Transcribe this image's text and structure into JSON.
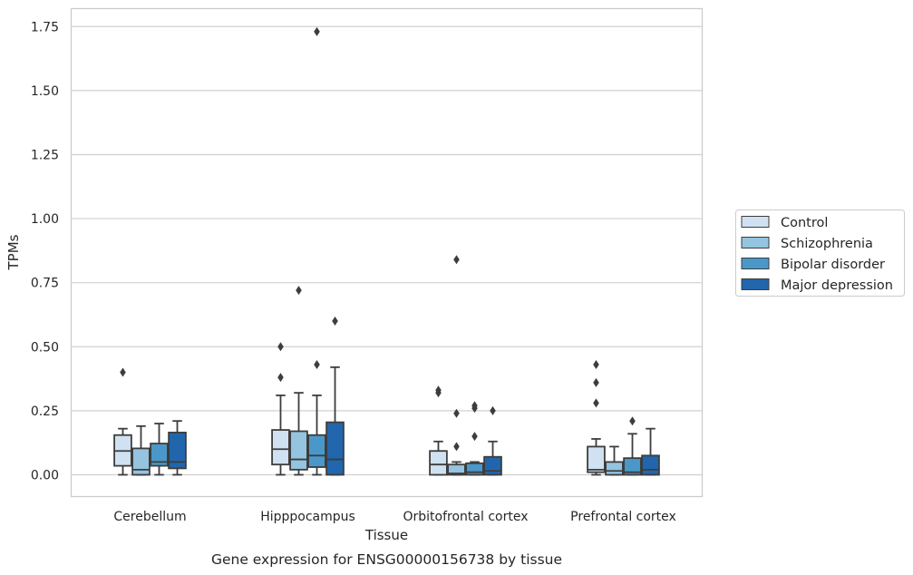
{
  "chart_data": {
    "type": "box",
    "title": "",
    "xlabel": "Tissue",
    "ylabel": "TPMs",
    "caption": "Gene expression for ENSG00000156738 by tissue",
    "ylim": [
      -0.085,
      1.82
    ],
    "yticks": [
      0.0,
      0.25,
      0.5,
      0.75,
      1.0,
      1.25,
      1.5,
      1.75
    ],
    "ytick_labels": [
      "0.00",
      "0.25",
      "0.50",
      "0.75",
      "1.00",
      "1.25",
      "1.50",
      "1.75"
    ],
    "categories": [
      "Cerebellum",
      "Hipppocampus",
      "Orbitofrontal cortex",
      "Prefrontal cortex"
    ],
    "grid": "horizontal",
    "legend_position": "right-outside",
    "series": [
      {
        "name": "Control",
        "color": "#d0e1f2",
        "boxes": [
          {
            "whislo": 0.0,
            "q1": 0.035,
            "med": 0.093,
            "q3": 0.155,
            "whishi": 0.18,
            "fliers": [
              0.4
            ]
          },
          {
            "whislo": 0.0,
            "q1": 0.04,
            "med": 0.1,
            "q3": 0.175,
            "whishi": 0.31,
            "fliers": [
              0.38,
              0.5
            ]
          },
          {
            "whislo": 0.0,
            "q1": 0.0,
            "med": 0.04,
            "q3": 0.093,
            "whishi": 0.13,
            "fliers": [
              0.32,
              0.33
            ]
          },
          {
            "whislo": 0.0,
            "q1": 0.01,
            "med": 0.02,
            "q3": 0.11,
            "whishi": 0.14,
            "fliers": [
              0.28,
              0.36,
              0.43
            ]
          }
        ]
      },
      {
        "name": "Schizophrenia",
        "color": "#94c4df",
        "boxes": [
          {
            "whislo": 0.0,
            "q1": 0.0,
            "med": 0.02,
            "q3": 0.103,
            "whishi": 0.19,
            "fliers": []
          },
          {
            "whislo": 0.0,
            "q1": 0.02,
            "med": 0.06,
            "q3": 0.17,
            "whishi": 0.32,
            "fliers": [
              0.72
            ]
          },
          {
            "whislo": 0.0,
            "q1": 0.0,
            "med": 0.005,
            "q3": 0.04,
            "whishi": 0.05,
            "fliers": [
              0.11,
              0.24,
              0.84
            ]
          },
          {
            "whislo": 0.0,
            "q1": 0.0,
            "med": 0.015,
            "q3": 0.05,
            "whishi": 0.11,
            "fliers": []
          }
        ]
      },
      {
        "name": "Bipolar disorder",
        "color": "#4a98c9",
        "boxes": [
          {
            "whislo": 0.0,
            "q1": 0.035,
            "med": 0.05,
            "q3": 0.122,
            "whishi": 0.2,
            "fliers": []
          },
          {
            "whislo": 0.0,
            "q1": 0.03,
            "med": 0.075,
            "q3": 0.155,
            "whishi": 0.31,
            "fliers": [
              0.43,
              1.73
            ]
          },
          {
            "whislo": 0.0,
            "q1": 0.0,
            "med": 0.01,
            "q3": 0.045,
            "whishi": 0.05,
            "fliers": [
              0.15,
              0.26,
              0.27
            ]
          },
          {
            "whislo": 0.0,
            "q1": 0.0,
            "med": 0.01,
            "q3": 0.065,
            "whishi": 0.16,
            "fliers": [
              0.21
            ]
          }
        ]
      },
      {
        "name": "Major depression",
        "color": "#2166ac",
        "boxes": [
          {
            "whislo": 0.0,
            "q1": 0.025,
            "med": 0.05,
            "q3": 0.165,
            "whishi": 0.21,
            "fliers": []
          },
          {
            "whislo": 0.0,
            "q1": 0.0,
            "med": 0.06,
            "q3": 0.205,
            "whishi": 0.42,
            "fliers": [
              0.6
            ]
          },
          {
            "whislo": 0.0,
            "q1": 0.0,
            "med": 0.015,
            "q3": 0.07,
            "whishi": 0.13,
            "fliers": [
              0.25
            ]
          },
          {
            "whislo": 0.0,
            "q1": 0.0,
            "med": 0.02,
            "q3": 0.075,
            "whishi": 0.18,
            "fliers": []
          }
        ]
      }
    ]
  }
}
